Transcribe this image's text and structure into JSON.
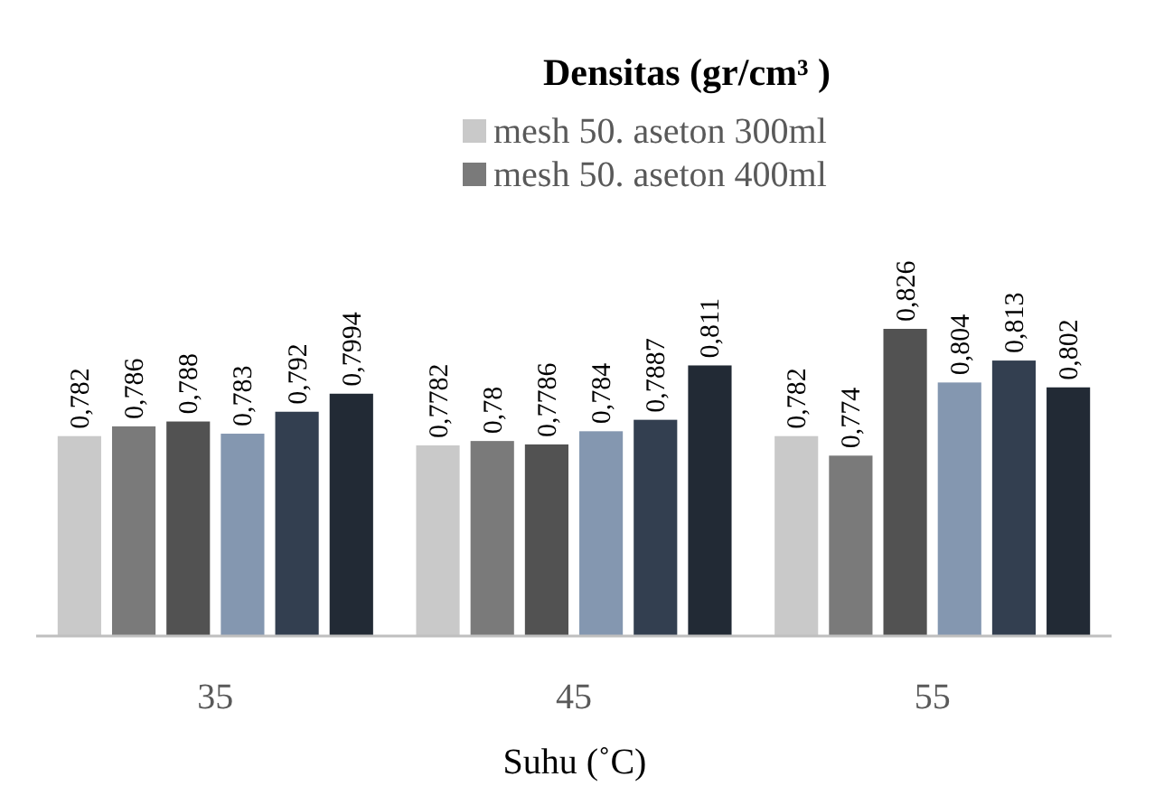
{
  "chart_data": {
    "type": "bar",
    "title": "Densitas (gr/cm³ )",
    "xlabel": "Suhu (˚C)",
    "categories": [
      "35",
      "45",
      "55"
    ],
    "ylim": [
      0.7,
      0.826
    ],
    "legend": "top",
    "series": [
      {
        "name": "mesh 50. aseton 300ml",
        "color": "#c9c9c9",
        "values": [
          0.782,
          0.7782,
          0.782
        ],
        "value_labels": [
          "0,782",
          "0,7782",
          "0,782"
        ]
      },
      {
        "name": "mesh 50. aseton 400ml",
        "color": "#7a7a7a",
        "values": [
          0.786,
          0.78,
          0.774
        ],
        "value_labels": [
          "0,786",
          "0,78",
          "0,774"
        ]
      },
      {
        "color": "#525252",
        "values": [
          0.788,
          0.7786,
          0.826
        ],
        "value_labels": [
          "0,788",
          "0,7786",
          "0,826"
        ]
      },
      {
        "color": "#8497b0",
        "values": [
          0.783,
          0.784,
          0.804
        ],
        "value_labels": [
          "0,783",
          "0,784",
          "0,804"
        ]
      },
      {
        "color": "#333f50",
        "values": [
          0.792,
          0.7887,
          0.813
        ],
        "value_labels": [
          "0,792",
          "0,7887",
          "0,813"
        ]
      },
      {
        "color": "#222a35",
        "values": [
          0.7994,
          0.811,
          0.802
        ],
        "value_labels": [
          "0,7994",
          "0,811",
          "0,802"
        ]
      }
    ]
  }
}
